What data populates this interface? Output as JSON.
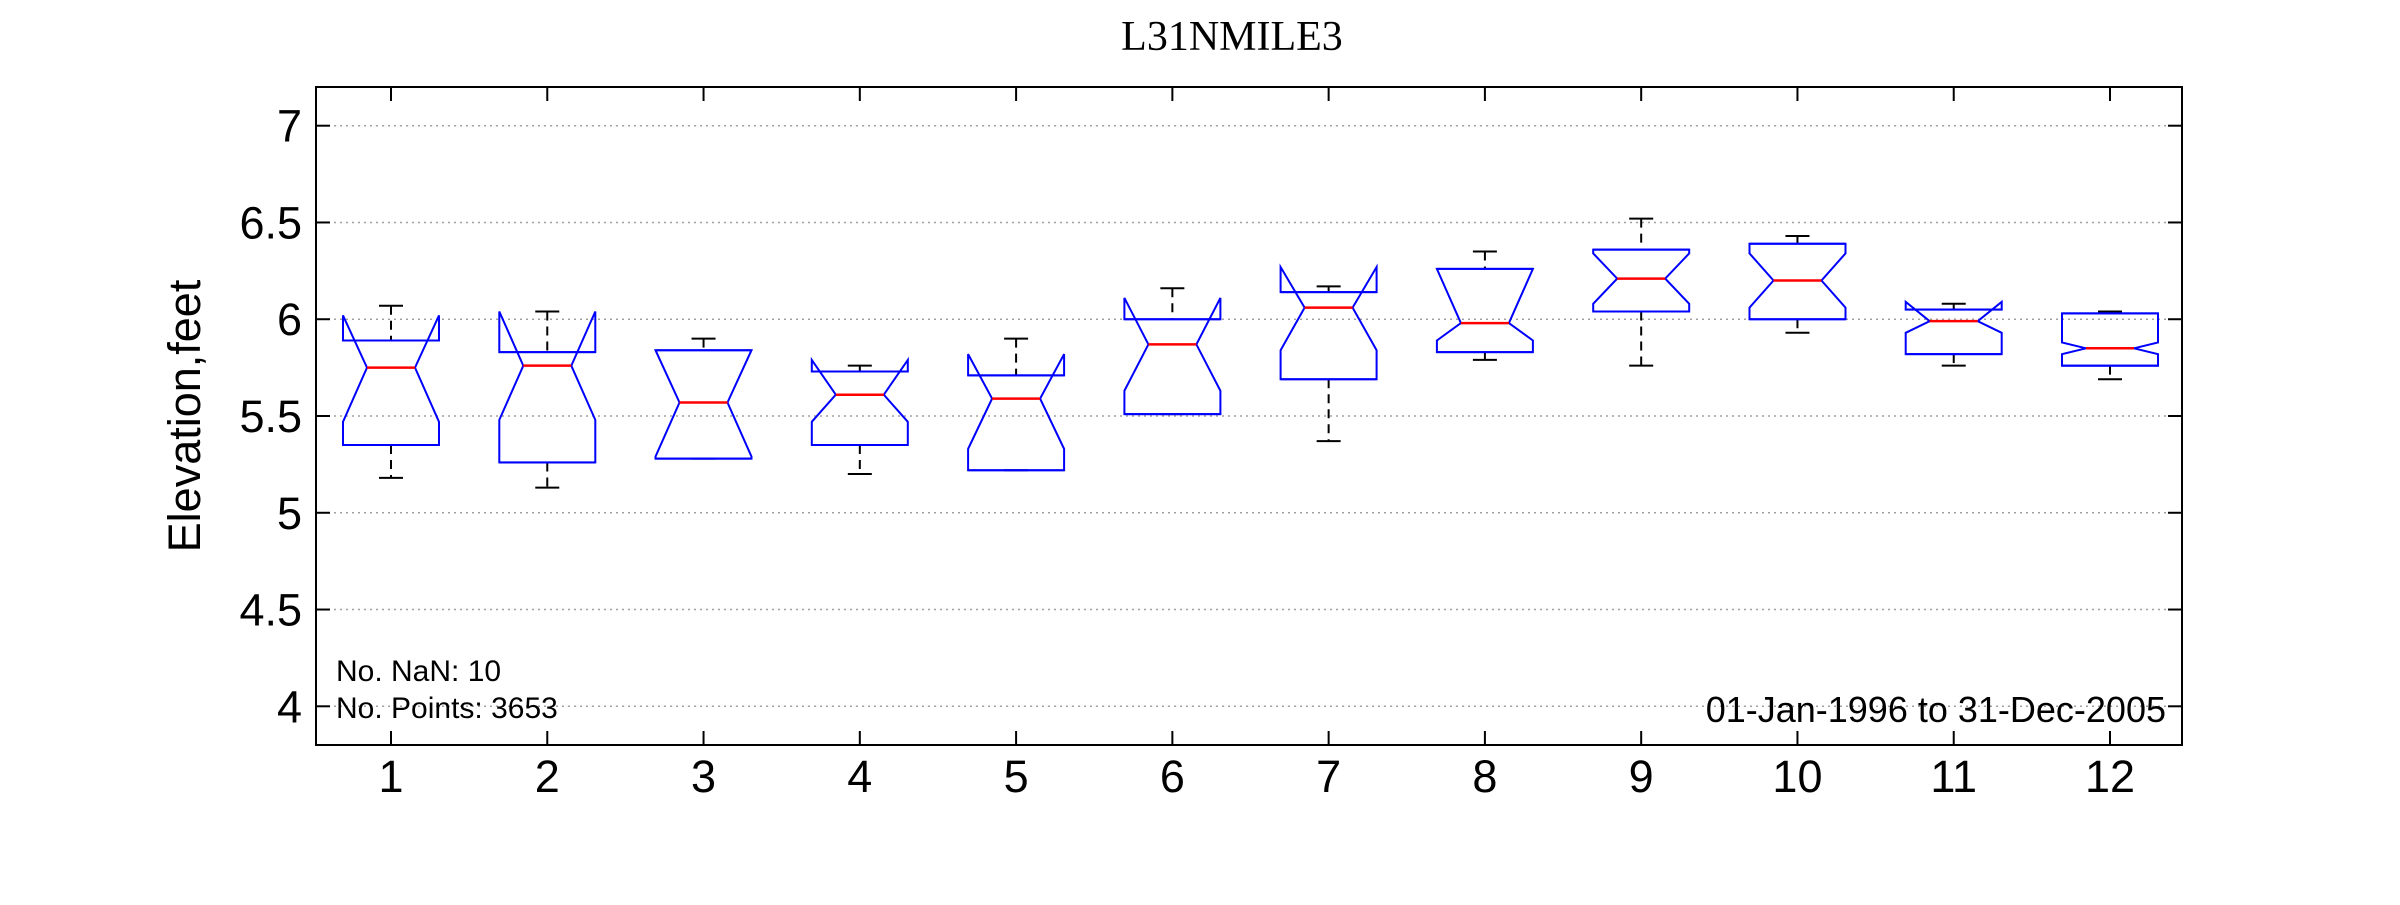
{
  "chart_data": {
    "type": "boxplot",
    "notched": true,
    "title": "L31NMILE3",
    "xlabel": "",
    "ylabel": "Elevation,feet",
    "ylim": [
      3.8,
      7.2
    ],
    "yticks": [
      4,
      4.5,
      5,
      5.5,
      6,
      6.5,
      7
    ],
    "grid": "horizontal dotted",
    "colors": {
      "box": "#0000ff",
      "median": "#ff0000",
      "whisker": "#000000",
      "grid": "#a0a0a0"
    },
    "categories": [
      "1",
      "2",
      "3",
      "4",
      "5",
      "6",
      "7",
      "8",
      "9",
      "10",
      "11",
      "12"
    ],
    "boxes": [
      {
        "month": "1",
        "whisker_low": 5.18,
        "q1": 5.35,
        "median": 5.75,
        "q3": 5.89,
        "whisker_high": 6.07,
        "notch_low": 5.47,
        "notch_high": 6.02
      },
      {
        "month": "2",
        "whisker_low": 5.13,
        "q1": 5.26,
        "median": 5.76,
        "q3": 5.83,
        "whisker_high": 6.04,
        "notch_low": 5.48,
        "notch_high": 6.04
      },
      {
        "month": "3",
        "whisker_low": 5.28,
        "q1": 5.28,
        "median": 5.57,
        "q3": 5.84,
        "whisker_high": 5.9,
        "notch_low": 5.29,
        "notch_high": 5.84
      },
      {
        "month": "4",
        "whisker_low": 5.2,
        "q1": 5.35,
        "median": 5.61,
        "q3": 5.73,
        "whisker_high": 5.76,
        "notch_low": 5.47,
        "notch_high": 5.79
      },
      {
        "month": "5",
        "whisker_low": 5.22,
        "q1": 5.22,
        "median": 5.59,
        "q3": 5.71,
        "whisker_high": 5.9,
        "notch_low": 5.33,
        "notch_high": 5.82
      },
      {
        "month": "6",
        "whisker_low": 5.51,
        "q1": 5.51,
        "median": 5.87,
        "q3": 6.0,
        "whisker_high": 6.16,
        "notch_low": 5.63,
        "notch_high": 6.11
      },
      {
        "month": "7",
        "whisker_low": 5.37,
        "q1": 5.69,
        "median": 6.06,
        "q3": 6.14,
        "whisker_high": 6.17,
        "notch_low": 5.84,
        "notch_high": 6.27
      },
      {
        "month": "8",
        "whisker_low": 5.79,
        "q1": 5.83,
        "median": 5.98,
        "q3": 6.26,
        "whisker_high": 6.35,
        "notch_low": 5.89,
        "notch_high": 6.26
      },
      {
        "month": "9",
        "whisker_low": 5.76,
        "q1": 6.04,
        "median": 6.21,
        "q3": 6.36,
        "whisker_high": 6.52,
        "notch_low": 6.08,
        "notch_high": 6.34
      },
      {
        "month": "10",
        "whisker_low": 5.93,
        "q1": 6.0,
        "median": 6.2,
        "q3": 6.39,
        "whisker_high": 6.43,
        "notch_low": 6.06,
        "notch_high": 6.34
      },
      {
        "month": "11",
        "whisker_low": 5.76,
        "q1": 5.82,
        "median": 5.99,
        "q3": 6.05,
        "whisker_high": 6.08,
        "notch_low": 5.93,
        "notch_high": 6.09
      },
      {
        "month": "12",
        "whisker_low": 5.69,
        "q1": 5.76,
        "median": 5.85,
        "q3": 6.03,
        "whisker_high": 6.04,
        "notch_low": 5.82,
        "notch_high": 5.88
      }
    ],
    "annotations": {
      "nan_count": "No. NaN: 10",
      "point_count": "No. Points: 3653",
      "date_range": "01-Jan-1996 to 31-Dec-2005"
    }
  }
}
